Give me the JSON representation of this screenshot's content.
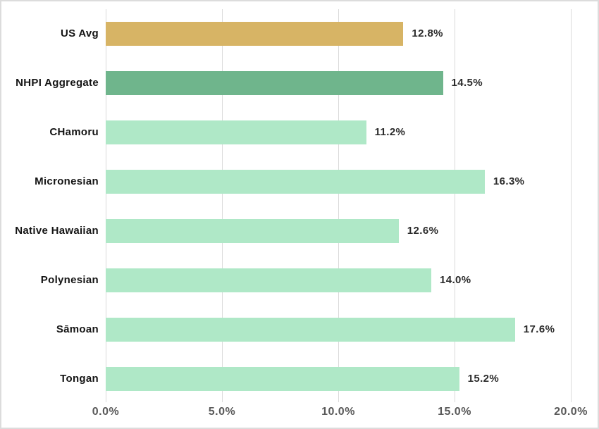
{
  "chart_data": {
    "type": "bar",
    "orientation": "horizontal",
    "title": "",
    "categories": [
      "US Avg",
      "NHPI Aggregate",
      "CHamoru",
      "Micronesian",
      "Native Hawaiian",
      "Polynesian",
      "Sāmoan",
      "Tongan"
    ],
    "values": [
      12.8,
      14.5,
      11.2,
      16.3,
      12.6,
      14.0,
      17.6,
      15.2
    ],
    "value_labels": [
      "12.8%",
      "14.5%",
      "11.2%",
      "16.3%",
      "12.6%",
      "14.0%",
      "17.6%",
      "15.2%"
    ],
    "bar_colors": [
      "#D7B465",
      "#6FB58C",
      "#AFE8C7",
      "#AFE8C7",
      "#AFE8C7",
      "#AFE8C7",
      "#AFE8C7",
      "#AFE8C7"
    ],
    "x_tick_labels": [
      "0.0%",
      "5.0%",
      "10.0%",
      "15.0%",
      "20.0%"
    ],
    "x_tick_values": [
      0,
      5,
      10,
      15,
      20
    ],
    "xlim": [
      0,
      20
    ],
    "grid": true,
    "legend": "none",
    "colors": {
      "us_avg_bar": "#D7B465",
      "nhpi_aggregate_bar": "#6FB58C",
      "subgroup_bar": "#AFE8C7",
      "gridline": "#DADADA",
      "axis_tick_label": "#595959",
      "category_label": "#141414",
      "value_label": "#2B2B2B",
      "background": "#FFFFFF",
      "frame_border": "#DCDCDC"
    }
  }
}
